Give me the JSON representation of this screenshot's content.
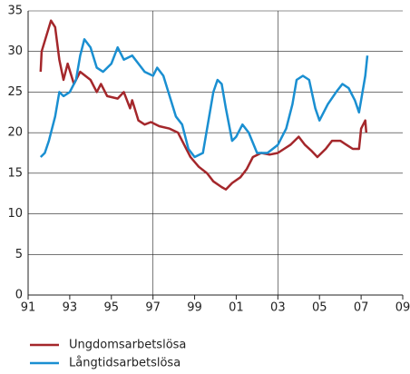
{
  "chart_data": {
    "type": "line",
    "xlim": [
      1991,
      2009
    ],
    "xticks": [
      {
        "value": 1991,
        "label": "91"
      },
      {
        "value": 1993,
        "label": "93"
      },
      {
        "value": 1995,
        "label": "95"
      },
      {
        "value": 1997,
        "label": "97"
      },
      {
        "value": 1999,
        "label": "99"
      },
      {
        "value": 2001,
        "label": "01"
      },
      {
        "value": 2003,
        "label": "03"
      },
      {
        "value": 2005,
        "label": "05"
      },
      {
        "value": 2007,
        "label": "07"
      },
      {
        "value": 2009,
        "label": "09"
      }
    ],
    "ylim": [
      0,
      35
    ],
    "yticks": [
      0,
      5,
      10,
      15,
      20,
      25,
      30,
      35
    ],
    "xgrid": [
      1997,
      2003
    ],
    "grid": true,
    "series": [
      {
        "name": "Ungdomsarbetslösa",
        "color": "#a4272b",
        "x": [
          1991.6,
          1991.65,
          1992.1,
          1992.3,
          1992.5,
          1992.7,
          1992.9,
          1993.2,
          1993.5,
          1994.0,
          1994.3,
          1994.5,
          1994.8,
          1995.3,
          1995.6,
          1995.9,
          1996.0,
          1996.3,
          1996.6,
          1996.9,
          1997.3,
          1997.8,
          1998.2,
          1998.5,
          1998.8,
          1999.2,
          1999.6,
          1999.9,
          2000.3,
          2000.5,
          2000.8,
          2001.2,
          2001.5,
          2001.8,
          2002.2,
          2002.6,
          2003.0,
          2003.3,
          2003.6,
          2004.0,
          2004.3,
          2004.6,
          2004.9,
          2005.3,
          2005.6,
          2006.0,
          2006.3,
          2006.6,
          2006.9,
          2007.0,
          2007.2,
          2007.25
        ],
        "values": [
          27.5,
          30,
          33.8,
          33,
          29,
          26.5,
          28.5,
          26,
          27.5,
          26.5,
          25,
          26,
          24.5,
          24.2,
          25,
          23,
          24,
          21.5,
          21,
          21.3,
          20.8,
          20.5,
          20,
          18.5,
          17,
          15.8,
          15,
          14,
          13.3,
          13,
          13.8,
          14.5,
          15.5,
          17,
          17.5,
          17.3,
          17.5,
          18,
          18.5,
          19.5,
          18.5,
          17.8,
          17,
          18,
          19,
          19,
          18.5,
          18,
          18,
          20.5,
          21.5,
          20
        ]
      },
      {
        "name": "Långtidsarbetslösa",
        "color": "#1a8fd1",
        "x": [
          1991.6,
          1991.8,
          1992.0,
          1992.3,
          1992.5,
          1992.7,
          1993.0,
          1993.3,
          1993.5,
          1993.7,
          1994.0,
          1994.3,
          1994.6,
          1995.0,
          1995.3,
          1995.6,
          1996.0,
          1996.3,
          1996.6,
          1997.0,
          1997.2,
          1997.5,
          1997.8,
          1998.1,
          1998.4,
          1998.7,
          1999.0,
          1999.4,
          1999.7,
          1999.9,
          2000.1,
          2000.3,
          2000.5,
          2000.8,
          2001.0,
          2001.3,
          2001.6,
          2002.0,
          2002.5,
          2003.0,
          2003.4,
          2003.7,
          2003.9,
          2004.2,
          2004.5,
          2004.8,
          2005.0,
          2005.4,
          2005.8,
          2006.1,
          2006.4,
          2006.7,
          2006.9,
          2007.0,
          2007.2,
          2007.3
        ],
        "values": [
          17,
          17.5,
          19,
          22,
          25,
          24.5,
          25,
          26.5,
          29.5,
          31.5,
          30.5,
          28,
          27.5,
          28.5,
          30.5,
          29,
          29.5,
          28.5,
          27.5,
          27,
          28,
          27,
          24.5,
          22,
          21,
          18,
          17,
          17.5,
          22,
          25,
          26.5,
          26,
          23,
          19,
          19.5,
          21,
          20,
          17.5,
          17.5,
          18.5,
          20.5,
          23.5,
          26.5,
          27,
          26.5,
          23,
          21.5,
          23.5,
          25,
          26,
          25.5,
          24,
          22.5,
          24,
          27,
          29.5
        ]
      }
    ]
  }
}
